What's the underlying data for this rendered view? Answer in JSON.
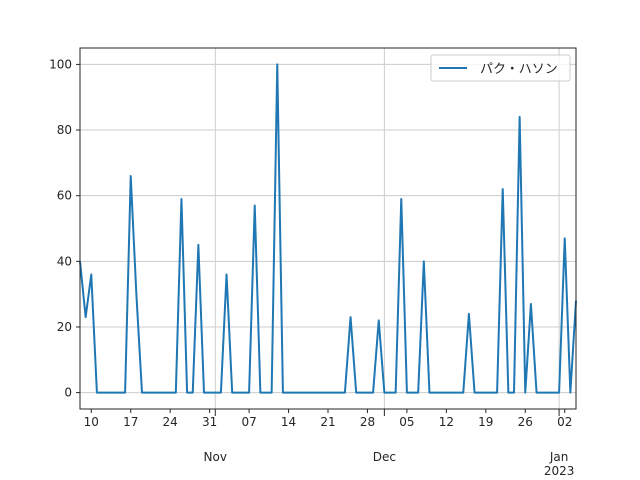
{
  "chart_data": {
    "type": "line",
    "series": [
      {
        "name": "パク・ハソン",
        "color": "#1f77b4",
        "points": [
          [
            "2022-10-08",
            40
          ],
          [
            "2022-10-09",
            23
          ],
          [
            "2022-10-10",
            36
          ],
          [
            "2022-10-11",
            0
          ],
          [
            "2022-10-12",
            0
          ],
          [
            "2022-10-13",
            0
          ],
          [
            "2022-10-14",
            0
          ],
          [
            "2022-10-15",
            0
          ],
          [
            "2022-10-16",
            0
          ],
          [
            "2022-10-17",
            66
          ],
          [
            "2022-10-18",
            30
          ],
          [
            "2022-10-19",
            0
          ],
          [
            "2022-10-20",
            0
          ],
          [
            "2022-10-21",
            0
          ],
          [
            "2022-10-22",
            0
          ],
          [
            "2022-10-23",
            0
          ],
          [
            "2022-10-24",
            0
          ],
          [
            "2022-10-25",
            0
          ],
          [
            "2022-10-26",
            59
          ],
          [
            "2022-10-27",
            0
          ],
          [
            "2022-10-28",
            0
          ],
          [
            "2022-10-29",
            45
          ],
          [
            "2022-10-30",
            0
          ],
          [
            "2022-10-31",
            0
          ],
          [
            "2022-11-01",
            0
          ],
          [
            "2022-11-02",
            0
          ],
          [
            "2022-11-03",
            36
          ],
          [
            "2022-11-04",
            0
          ],
          [
            "2022-11-05",
            0
          ],
          [
            "2022-11-06",
            0
          ],
          [
            "2022-11-07",
            0
          ],
          [
            "2022-11-08",
            57
          ],
          [
            "2022-11-09",
            0
          ],
          [
            "2022-11-10",
            0
          ],
          [
            "2022-11-11",
            0
          ],
          [
            "2022-11-12",
            100
          ],
          [
            "2022-11-13",
            0
          ],
          [
            "2022-11-14",
            0
          ],
          [
            "2022-11-15",
            0
          ],
          [
            "2022-11-16",
            0
          ],
          [
            "2022-11-17",
            0
          ],
          [
            "2022-11-18",
            0
          ],
          [
            "2022-11-19",
            0
          ],
          [
            "2022-11-20",
            0
          ],
          [
            "2022-11-21",
            0
          ],
          [
            "2022-11-22",
            0
          ],
          [
            "2022-11-23",
            0
          ],
          [
            "2022-11-24",
            0
          ],
          [
            "2022-11-25",
            23
          ],
          [
            "2022-11-26",
            0
          ],
          [
            "2022-11-27",
            0
          ],
          [
            "2022-11-28",
            0
          ],
          [
            "2022-11-29",
            0
          ],
          [
            "2022-11-30",
            22
          ],
          [
            "2022-12-01",
            0
          ],
          [
            "2022-12-02",
            0
          ],
          [
            "2022-12-03",
            0
          ],
          [
            "2022-12-04",
            59
          ],
          [
            "2022-12-05",
            0
          ],
          [
            "2022-12-06",
            0
          ],
          [
            "2022-12-07",
            0
          ],
          [
            "2022-12-08",
            40
          ],
          [
            "2022-12-09",
            0
          ],
          [
            "2022-12-10",
            0
          ],
          [
            "2022-12-11",
            0
          ],
          [
            "2022-12-12",
            0
          ],
          [
            "2022-12-13",
            0
          ],
          [
            "2022-12-14",
            0
          ],
          [
            "2022-12-15",
            0
          ],
          [
            "2022-12-16",
            24
          ],
          [
            "2022-12-17",
            0
          ],
          [
            "2022-12-18",
            0
          ],
          [
            "2022-12-19",
            0
          ],
          [
            "2022-12-20",
            0
          ],
          [
            "2022-12-21",
            0
          ],
          [
            "2022-12-22",
            62
          ],
          [
            "2022-12-23",
            0
          ],
          [
            "2022-12-24",
            0
          ],
          [
            "2022-12-25",
            84
          ],
          [
            "2022-12-26",
            0
          ],
          [
            "2022-12-27",
            27
          ],
          [
            "2022-12-28",
            0
          ],
          [
            "2022-12-29",
            0
          ],
          [
            "2022-12-30",
            0
          ],
          [
            "2022-12-31",
            0
          ],
          [
            "2023-01-01",
            0
          ],
          [
            "2023-01-02",
            47
          ],
          [
            "2023-01-03",
            0
          ],
          [
            "2023-01-04",
            28
          ]
        ]
      }
    ],
    "xlim": [
      "2022-10-08",
      "2023-01-04"
    ],
    "ylim": [
      -5,
      105
    ],
    "yticks": [
      0,
      20,
      40,
      60,
      80,
      100
    ],
    "xticks_minor": [
      {
        "date": "2022-10-10",
        "label": "10"
      },
      {
        "date": "2022-10-17",
        "label": "17"
      },
      {
        "date": "2022-10-24",
        "label": "24"
      },
      {
        "date": "2022-10-31",
        "label": "31"
      },
      {
        "date": "2022-11-07",
        "label": "07"
      },
      {
        "date": "2022-11-14",
        "label": "14"
      },
      {
        "date": "2022-11-21",
        "label": "21"
      },
      {
        "date": "2022-11-28",
        "label": "28"
      },
      {
        "date": "2022-12-05",
        "label": "05"
      },
      {
        "date": "2022-12-12",
        "label": "12"
      },
      {
        "date": "2022-12-19",
        "label": "19"
      },
      {
        "date": "2022-12-26",
        "label": "26"
      },
      {
        "date": "2023-01-02",
        "label": "02"
      }
    ],
    "xticks_major": [
      {
        "date": "2022-11-01",
        "label": "Nov"
      },
      {
        "date": "2022-12-01",
        "label": "Dec"
      },
      {
        "date": "2023-01-01",
        "label": "Jan",
        "sublabel": "2023"
      }
    ],
    "grid": true,
    "legend_position": "top-right"
  }
}
